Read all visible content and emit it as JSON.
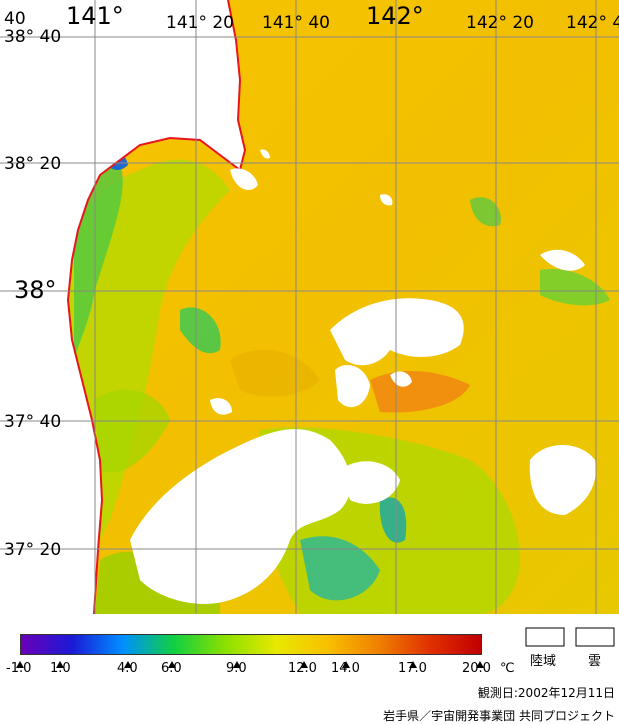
{
  "map": {
    "lon_labels": [
      {
        "text": "141°",
        "lon": 141.0,
        "size": "big"
      },
      {
        "text": "141° 20",
        "lon": 141.333,
        "size": "small"
      },
      {
        "text": "141° 40",
        "lon": 141.667,
        "size": "small"
      },
      {
        "text": "142°",
        "lon": 142.0,
        "size": "big"
      },
      {
        "text": "142° 20",
        "lon": 142.333,
        "size": "small"
      },
      {
        "text": "142° 4",
        "lon": 142.6,
        "size": "small"
      }
    ],
    "lat_labels": [
      {
        "text": "38° 40",
        "lat": 38.667,
        "size": "small"
      },
      {
        "text": "38° 20",
        "lat": 38.333,
        "size": "small"
      },
      {
        "text": "38°",
        "lat": 38.0,
        "size": "big"
      },
      {
        "text": "37° 40",
        "lat": 37.667,
        "size": "small"
      },
      {
        "text": "37° 20",
        "lat": 37.333,
        "size": "small"
      }
    ],
    "corner_label": "40",
    "colors": {
      "land": "#ffffff",
      "cloud": "#ffffff",
      "coastline": "#e8141e",
      "grid": "#888888",
      "sea_base": "#f2c200"
    }
  },
  "legend": {
    "gradient_colors": [
      "#6b00b8",
      "#1a1ad6",
      "#0090ff",
      "#10d040",
      "#8ce000",
      "#e8e800",
      "#f8c000",
      "#f08000",
      "#e03000",
      "#c00000"
    ],
    "ticks": [
      "-1.0",
      "1.0",
      "4.0",
      "6.0",
      "9.0",
      "12.0",
      "14.0",
      "17.0",
      "20.0"
    ],
    "unit": "℃",
    "land_label": "陸域",
    "cloud_label": "雲"
  },
  "footer": {
    "observation_date": "観測日:2002年12月11日",
    "credit": "岩手県／宇宙開発事業団 共同プロジェクト"
  }
}
